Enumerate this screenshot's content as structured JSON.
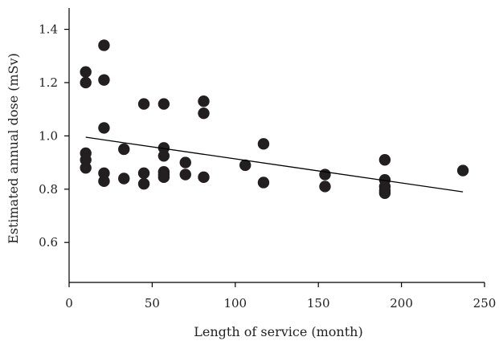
{
  "chart_data": {
    "type": "scatter",
    "title": "",
    "xlabel": "Length of service (month)",
    "ylabel": "Estimated annual dose (mSv)",
    "xlim": [
      0,
      250
    ],
    "ylim": [
      0.45,
      1.48
    ],
    "xticks": [
      0,
      50,
      100,
      150,
      200,
      250
    ],
    "xtick_labels": [
      "0",
      "50",
      "100",
      "150",
      "200",
      "250"
    ],
    "yticks": [
      0.6,
      0.8,
      1.0,
      1.2,
      1.4
    ],
    "ytick_labels": [
      "0.6",
      "0.8",
      "1.0",
      "1.2",
      "1.4"
    ],
    "grid": false,
    "point_color": "#231f20",
    "series": [
      {
        "x": [
          10,
          10,
          10,
          10,
          10,
          21,
          21,
          21,
          21,
          21,
          33,
          33,
          45,
          45,
          45,
          57,
          57,
          57,
          57,
          57,
          57,
          70,
          70,
          81,
          81,
          81,
          106,
          117,
          117,
          154,
          154,
          190,
          190,
          190,
          190,
          190,
          237
        ],
        "y": [
          1.24,
          1.2,
          0.935,
          0.91,
          0.88,
          1.34,
          1.21,
          1.03,
          0.86,
          0.83,
          0.95,
          0.84,
          1.12,
          0.86,
          0.82,
          1.12,
          0.955,
          0.925,
          0.865,
          0.845,
          0.855,
          0.9,
          0.855,
          1.13,
          1.085,
          0.845,
          0.89,
          0.97,
          0.825,
          0.855,
          0.81,
          0.91,
          0.835,
          0.81,
          0.785,
          0.795,
          0.87
        ]
      }
    ],
    "trendline": {
      "x": [
        10,
        237
      ],
      "y": [
        0.995,
        0.79
      ]
    }
  }
}
